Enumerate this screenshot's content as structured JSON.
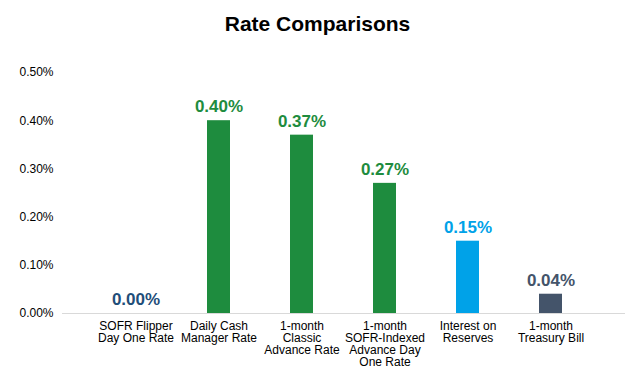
{
  "chart_data": {
    "type": "bar",
    "title": "Rate Comparisons",
    "categories": [
      "SOFR Flipper Day One Rate",
      "Daily Cash Manager Rate",
      "1-month Classic Advance Rate",
      "1-month SOFR-Indexed Advance Day One Rate",
      "Interest on Reserves",
      "1-month Treasury Bill"
    ],
    "values": [
      0,
      0.4,
      0.37,
      0.27,
      0.15,
      0.04
    ],
    "value_labels": [
      "0.00%",
      "0.40%",
      "0.37%",
      "0.27%",
      "0.15%",
      "0.04%"
    ],
    "colors": [
      "#1f4e79",
      "#1e8c3e",
      "#1e8c3e",
      "#1e8c3e",
      "#00a2e8",
      "#44546a"
    ],
    "ylim": [
      0,
      0.5
    ],
    "yticks": [
      {
        "value": 0,
        "label": "0.00%"
      },
      {
        "value": 0.1,
        "label": "0.10%"
      },
      {
        "value": 0.2,
        "label": "0.20%"
      },
      {
        "value": 0.3,
        "label": "0.30%"
      },
      {
        "value": 0.4,
        "label": "0.40%"
      },
      {
        "value": 0.5,
        "label": "0.50%"
      }
    ],
    "grid": false,
    "data_labels": true
  }
}
